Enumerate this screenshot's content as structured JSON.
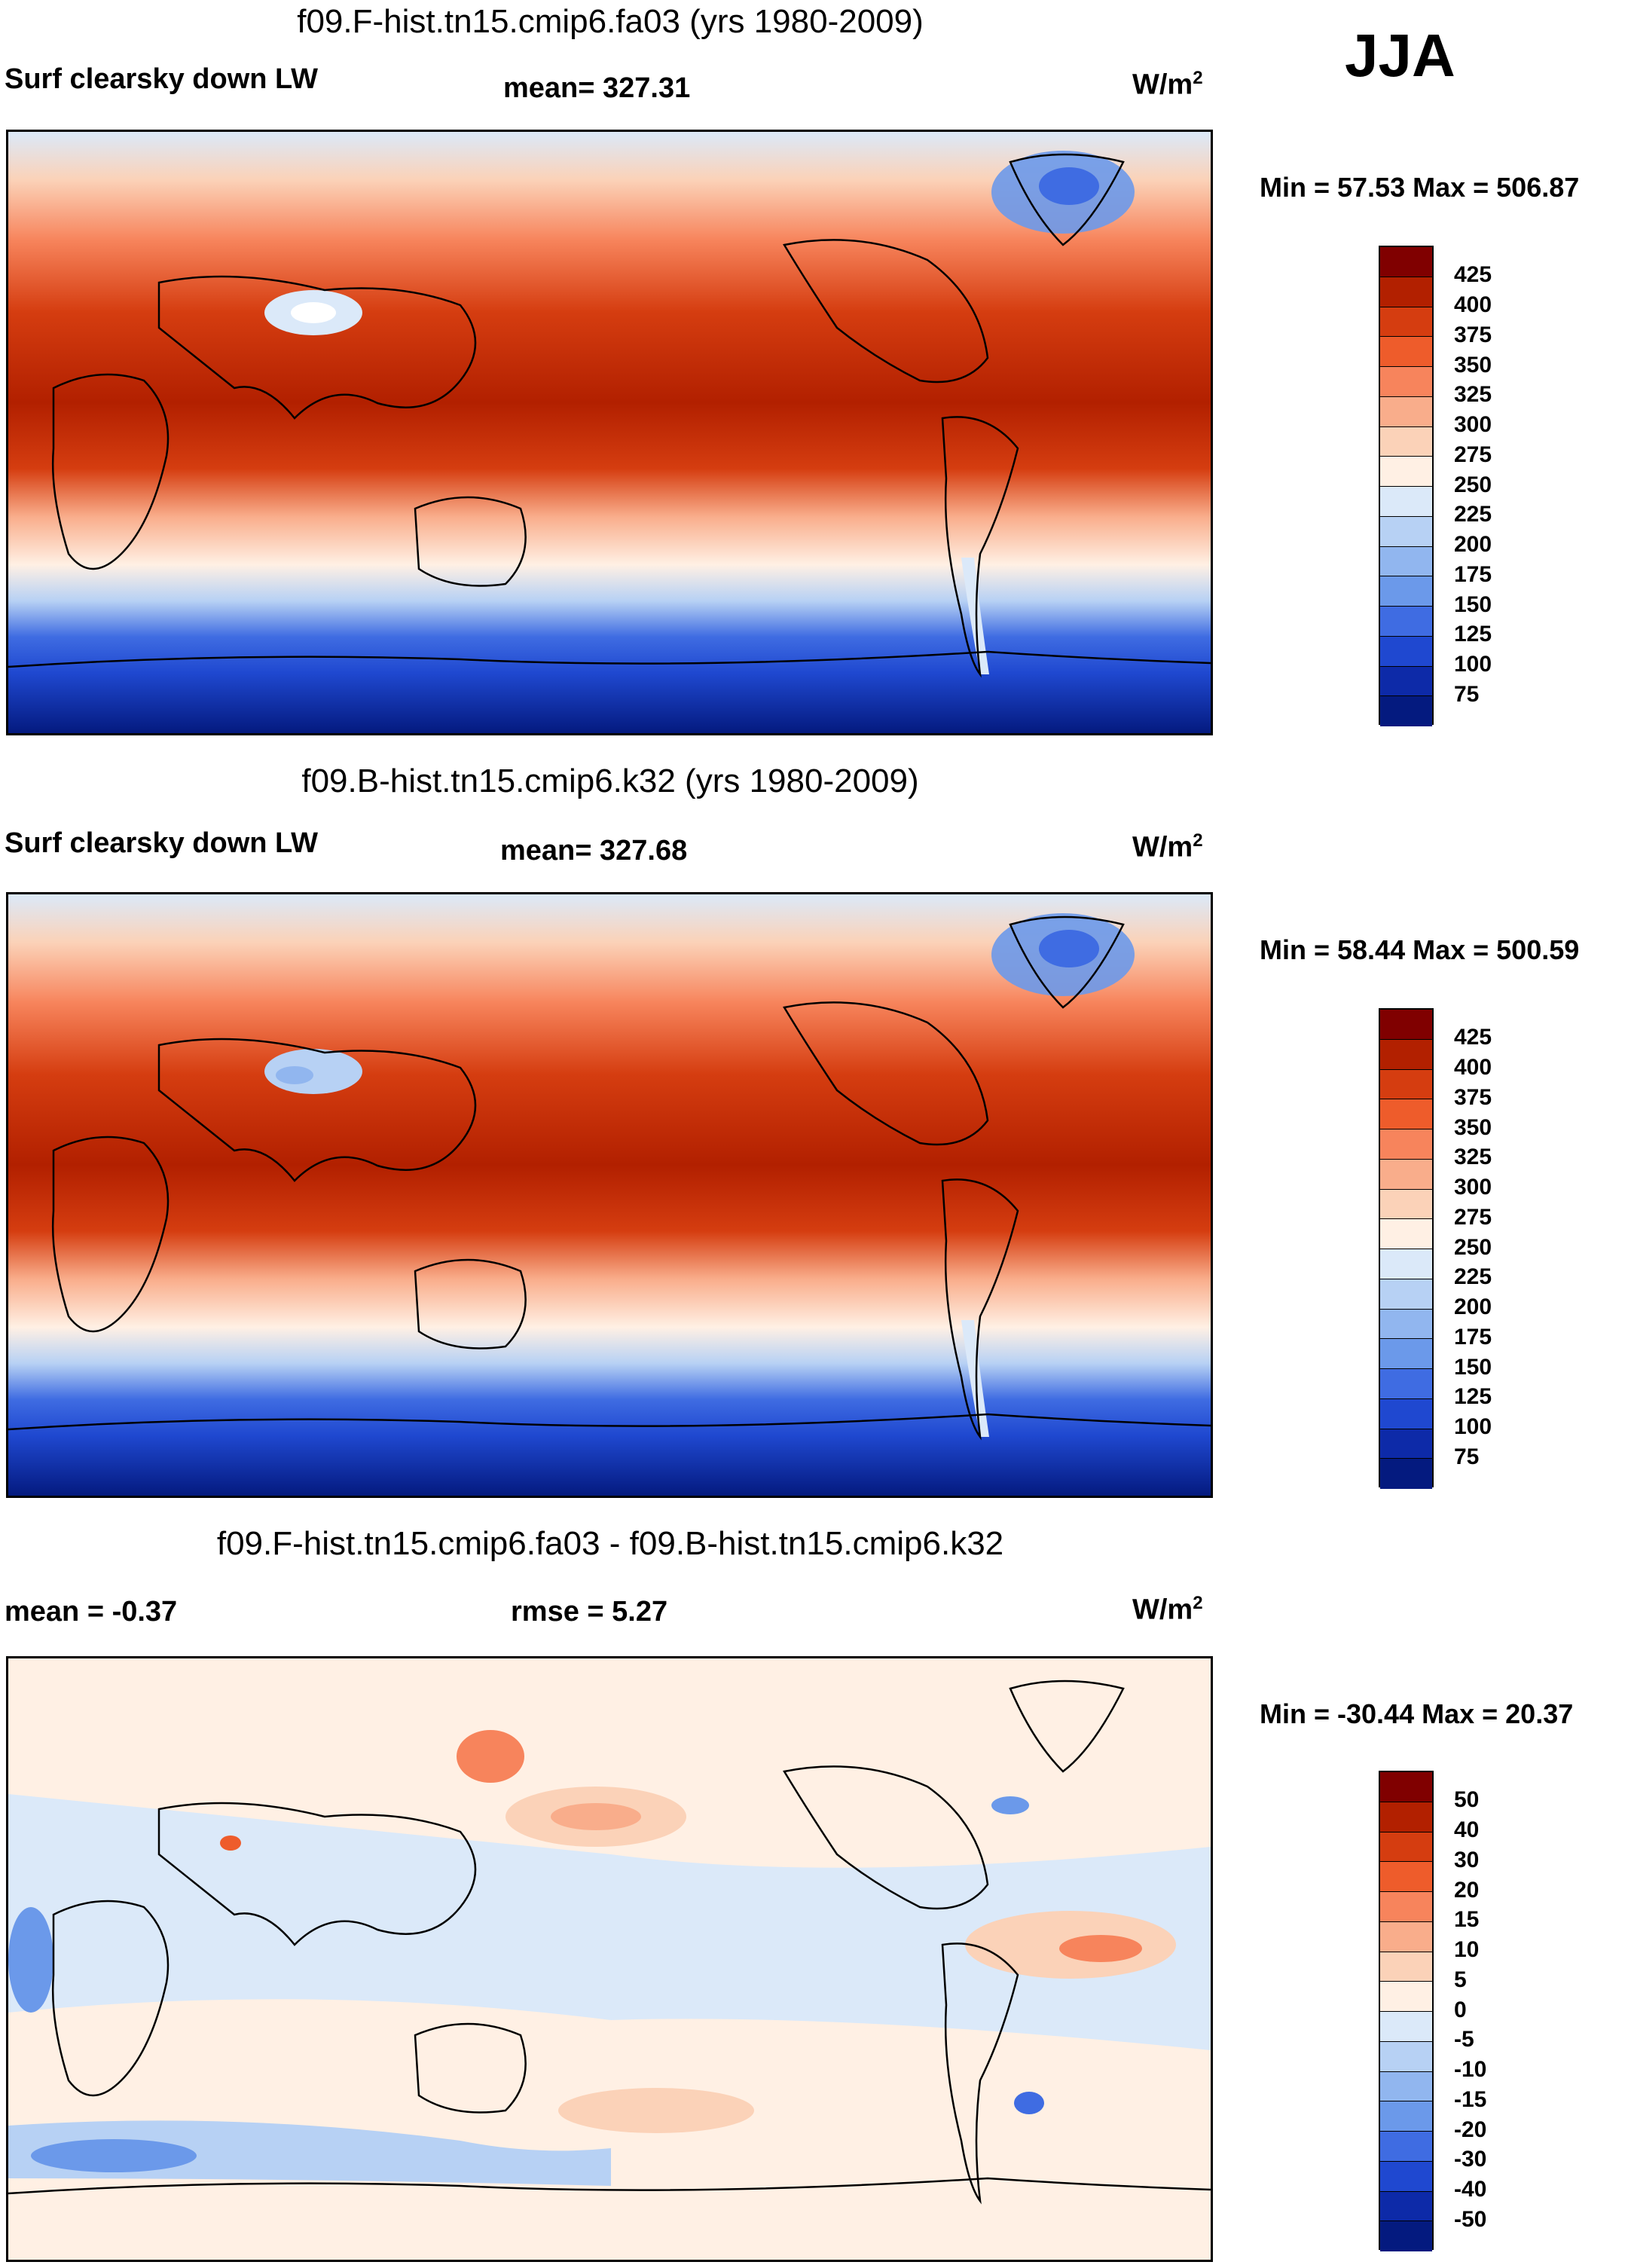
{
  "season": "JJA",
  "panels": [
    {
      "title": "f09.F-hist.tn15.cmip6.fa03 (yrs 1980-2009)",
      "variable": "Surf clearsky down LW",
      "stat": "mean= 327.31",
      "units_base": "W/m",
      "units_exp": "2",
      "minmax": "Min =  57.53 Max = 506.87",
      "ticks": [
        "425",
        "400",
        "375",
        "350",
        "325",
        "300",
        "275",
        "250",
        "225",
        "200",
        "175",
        "150",
        "125",
        "100",
        "75"
      ],
      "colors": [
        "#800000",
        "#b22000",
        "#d53d10",
        "#ee5c2b",
        "#f7845c",
        "#f9ad8b",
        "#fbd2b8",
        "#fff0e4",
        "#dbe9f9",
        "#b7d1f4",
        "#91b6ef",
        "#6b99ea",
        "#3f6ce2",
        "#1f48d0",
        "#0d2aa8",
        "#041a7f"
      ]
    },
    {
      "title": "f09.B-hist.tn15.cmip6.k32 (yrs 1980-2009)",
      "variable": "Surf clearsky down LW",
      "stat": "mean= 327.68",
      "units_base": "W/m",
      "units_exp": "2",
      "minmax": "Min =  58.44 Max = 500.59",
      "ticks": [
        "425",
        "400",
        "375",
        "350",
        "325",
        "300",
        "275",
        "250",
        "225",
        "200",
        "175",
        "150",
        "125",
        "100",
        "75"
      ],
      "colors": [
        "#800000",
        "#b22000",
        "#d53d10",
        "#ee5c2b",
        "#f7845c",
        "#f9ad8b",
        "#fbd2b8",
        "#fff0e4",
        "#dbe9f9",
        "#b7d1f4",
        "#91b6ef",
        "#6b99ea",
        "#3f6ce2",
        "#1f48d0",
        "#0d2aa8",
        "#041a7f"
      ]
    },
    {
      "title": "f09.F-hist.tn15.cmip6.fa03 - f09.B-hist.tn15.cmip6.k32",
      "variable": "mean =  -0.37",
      "stat": "rmse =    5.27",
      "units_base": "W/m",
      "units_exp": "2",
      "minmax": "Min = -30.44 Max =  20.37",
      "ticks": [
        "50",
        "40",
        "30",
        "20",
        "15",
        "10",
        "5",
        "0",
        "-5",
        "-10",
        "-15",
        "-20",
        "-30",
        "-40",
        "-50"
      ],
      "colors": [
        "#800000",
        "#b22000",
        "#d53d10",
        "#ee5c2b",
        "#f7845c",
        "#f9ad8b",
        "#fbd2b8",
        "#fff0e4",
        "#dbe9f9",
        "#b7d1f4",
        "#91b6ef",
        "#6b99ea",
        "#3f6ce2",
        "#1f48d0",
        "#0d2aa8",
        "#041a7f"
      ]
    }
  ]
}
